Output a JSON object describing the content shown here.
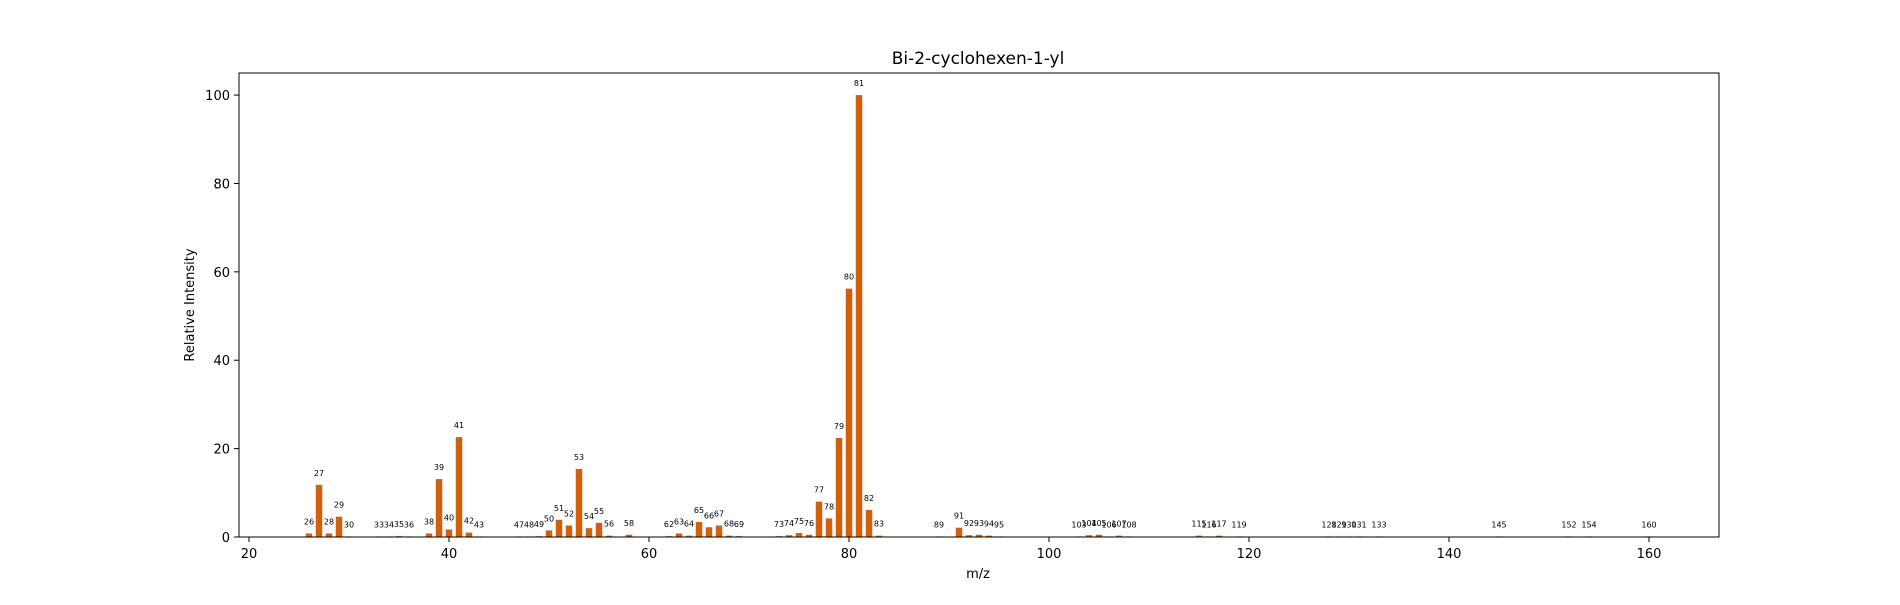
{
  "chart_data": {
    "type": "bar",
    "title": "Bi-2-cyclohexen-1-yl",
    "xlabel": "m/z",
    "ylabel": "Relative Intensity",
    "xlim": [
      19,
      167
    ],
    "ylim": [
      0,
      105
    ],
    "xticks": [
      20,
      40,
      60,
      80,
      100,
      120,
      140,
      160
    ],
    "yticks": [
      0,
      20,
      40,
      60,
      80,
      100
    ],
    "bar_color": "#d35f0b",
    "grid": false,
    "peaks": [
      {
        "mz": 26,
        "intensity": 0.8
      },
      {
        "mz": 27,
        "intensity": 11.8
      },
      {
        "mz": 28,
        "intensity": 0.8
      },
      {
        "mz": 29,
        "intensity": 4.6
      },
      {
        "mz": 30,
        "intensity": 0.1
      },
      {
        "mz": 33,
        "intensity": 0.1
      },
      {
        "mz": 34,
        "intensity": 0.1
      },
      {
        "mz": 35,
        "intensity": 0.2
      },
      {
        "mz": 36,
        "intensity": 0.1
      },
      {
        "mz": 38,
        "intensity": 0.8
      },
      {
        "mz": 39,
        "intensity": 13.1
      },
      {
        "mz": 40,
        "intensity": 1.7
      },
      {
        "mz": 41,
        "intensity": 22.6
      },
      {
        "mz": 42,
        "intensity": 1.0
      },
      {
        "mz": 43,
        "intensity": 0.1
      },
      {
        "mz": 47,
        "intensity": 0.1
      },
      {
        "mz": 48,
        "intensity": 0.1
      },
      {
        "mz": 49,
        "intensity": 0.2
      },
      {
        "mz": 50,
        "intensity": 1.5
      },
      {
        "mz": 51,
        "intensity": 3.9
      },
      {
        "mz": 52,
        "intensity": 2.6
      },
      {
        "mz": 53,
        "intensity": 15.4
      },
      {
        "mz": 54,
        "intensity": 2.0
      },
      {
        "mz": 55,
        "intensity": 3.2
      },
      {
        "mz": 56,
        "intensity": 0.3
      },
      {
        "mz": 58,
        "intensity": 0.5
      },
      {
        "mz": 62,
        "intensity": 0.2
      },
      {
        "mz": 63,
        "intensity": 0.8
      },
      {
        "mz": 64,
        "intensity": 0.3
      },
      {
        "mz": 65,
        "intensity": 3.4
      },
      {
        "mz": 66,
        "intensity": 2.2
      },
      {
        "mz": 67,
        "intensity": 2.6
      },
      {
        "mz": 68,
        "intensity": 0.3
      },
      {
        "mz": 69,
        "intensity": 0.2
      },
      {
        "mz": 73,
        "intensity": 0.2
      },
      {
        "mz": 74,
        "intensity": 0.4
      },
      {
        "mz": 75,
        "intensity": 0.9
      },
      {
        "mz": 76,
        "intensity": 0.5
      },
      {
        "mz": 77,
        "intensity": 8.0
      },
      {
        "mz": 78,
        "intensity": 4.2
      },
      {
        "mz": 79,
        "intensity": 22.4
      },
      {
        "mz": 80,
        "intensity": 56.2
      },
      {
        "mz": 81,
        "intensity": 100.0
      },
      {
        "mz": 82,
        "intensity": 6.1
      },
      {
        "mz": 83,
        "intensity": 0.3
      },
      {
        "mz": 89,
        "intensity": 0.1
      },
      {
        "mz": 91,
        "intensity": 2.1
      },
      {
        "mz": 92,
        "intensity": 0.4
      },
      {
        "mz": 93,
        "intensity": 0.5
      },
      {
        "mz": 94,
        "intensity": 0.3
      },
      {
        "mz": 95,
        "intensity": 0.1
      },
      {
        "mz": 103,
        "intensity": 0.1
      },
      {
        "mz": 104,
        "intensity": 0.4
      },
      {
        "mz": 105,
        "intensity": 0.5
      },
      {
        "mz": 106,
        "intensity": 0.1
      },
      {
        "mz": 107,
        "intensity": 0.3
      },
      {
        "mz": 108,
        "intensity": 0.1
      },
      {
        "mz": 115,
        "intensity": 0.3
      },
      {
        "mz": 116,
        "intensity": 0.1
      },
      {
        "mz": 117,
        "intensity": 0.3
      },
      {
        "mz": 119,
        "intensity": 0.1
      },
      {
        "mz": 128,
        "intensity": 0.1
      },
      {
        "mz": 129,
        "intensity": 0.1
      },
      {
        "mz": 130,
        "intensity": 0.1
      },
      {
        "mz": 131,
        "intensity": 0.1
      },
      {
        "mz": 133,
        "intensity": 0.1
      },
      {
        "mz": 145,
        "intensity": 0.1
      },
      {
        "mz": 152,
        "intensity": 0.1
      },
      {
        "mz": 154,
        "intensity": 0.1
      },
      {
        "mz": 160,
        "intensity": 0.1
      }
    ]
  }
}
